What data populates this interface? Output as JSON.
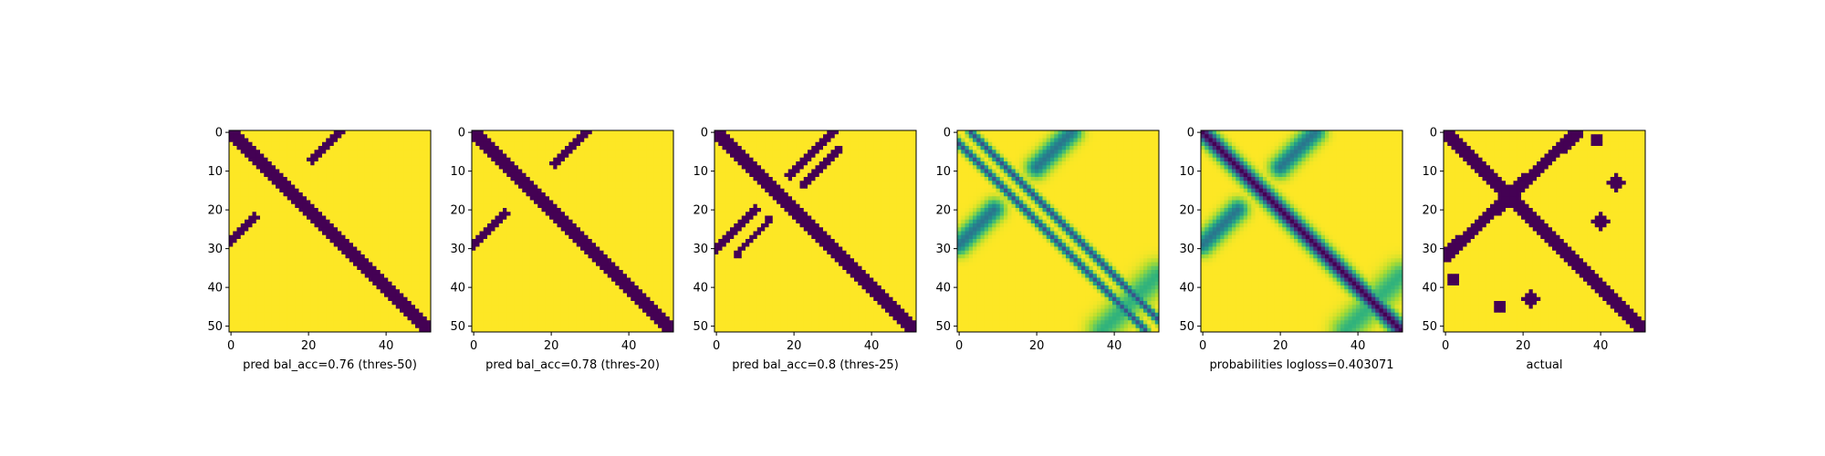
{
  "chart_data": [
    {
      "type": "heatmap",
      "id": "panel-1",
      "kind": "binary",
      "xlabel": "pred bal_acc=0.76 (thres-50)",
      "x_ticks": [
        0,
        20,
        40
      ],
      "y_ticks": [
        0,
        10,
        20,
        30,
        40,
        50
      ],
      "xlim": [
        0,
        51
      ],
      "ylim": [
        51,
        0
      ],
      "grid_size": 52,
      "colormap": "viridis",
      "bands": [
        {
          "type": "diagonal",
          "start": [
            0,
            0
          ],
          "end": [
            51,
            51
          ],
          "half_width": 1.8
        },
        {
          "type": "anti",
          "start": [
            28,
            0
          ],
          "end": [
            21,
            7
          ],
          "half_width": 1.0
        },
        {
          "type": "anti",
          "start": [
            6,
            22
          ],
          "end": [
            0,
            28
          ],
          "half_width": 1.0
        }
      ]
    },
    {
      "type": "heatmap",
      "id": "panel-2",
      "kind": "binary",
      "xlabel": "pred bal_acc=0.78 (thres-20)",
      "x_ticks": [
        0,
        20,
        40
      ],
      "y_ticks": [
        0,
        10,
        20,
        30,
        40,
        50
      ],
      "xlim": [
        0,
        51
      ],
      "ylim": [
        51,
        0
      ],
      "grid_size": 52,
      "colormap": "viridis",
      "bands": [
        {
          "type": "diagonal",
          "start": [
            0,
            0
          ],
          "end": [
            51,
            51
          ],
          "half_width": 1.9
        },
        {
          "type": "anti",
          "start": [
            29,
            0
          ],
          "end": [
            21,
            8
          ],
          "half_width": 1.1
        },
        {
          "type": "anti",
          "start": [
            8,
            21
          ],
          "end": [
            0,
            29
          ],
          "half_width": 1.1
        }
      ]
    },
    {
      "type": "heatmap",
      "id": "panel-3",
      "kind": "binary",
      "xlabel": "pred bal_acc=0.8 (thres-25)",
      "x_ticks": [
        0,
        20,
        40
      ],
      "y_ticks": [
        0,
        10,
        20,
        30,
        40,
        50
      ],
      "xlim": [
        0,
        51
      ],
      "ylim": [
        51,
        0
      ],
      "grid_size": 52,
      "colormap": "viridis",
      "bands": [
        {
          "type": "diagonal",
          "start": [
            0,
            0
          ],
          "end": [
            51,
            51
          ],
          "half_width": 2.0
        },
        {
          "type": "anti",
          "start": [
            30,
            0
          ],
          "end": [
            19,
            11
          ],
          "half_width": 1.2
        },
        {
          "type": "anti",
          "start": [
            32,
            4
          ],
          "end": [
            22,
            14
          ],
          "half_width": 0.8
        },
        {
          "type": "anti",
          "start": [
            10,
            20
          ],
          "end": [
            0,
            30
          ],
          "half_width": 1.2
        },
        {
          "type": "anti",
          "start": [
            14,
            22
          ],
          "end": [
            5,
            32
          ],
          "half_width": 0.8
        }
      ]
    },
    {
      "type": "heatmap",
      "id": "panel-4",
      "kind": "probability",
      "xlabel": "",
      "x_ticks": [
        0,
        20,
        40
      ],
      "y_ticks": [
        0,
        10,
        20,
        30,
        40,
        50
      ],
      "xlim": [
        0,
        51
      ],
      "ylim": [
        51,
        0
      ],
      "grid_size": 52,
      "colormap": "viridis",
      "bands": [
        {
          "type": "diagonal",
          "start": [
            0,
            0
          ],
          "end": [
            51,
            51
          ],
          "half_width": 0.7,
          "offset": 3,
          "level": 0.75
        },
        {
          "type": "diagonal",
          "start": [
            0,
            0
          ],
          "end": [
            51,
            51
          ],
          "half_width": 0.7,
          "offset": -3,
          "level": 0.75
        },
        {
          "type": "anti",
          "start": [
            29,
            0
          ],
          "end": [
            20,
            9
          ],
          "half_width": 1.8,
          "level": 0.6
        },
        {
          "type": "anti",
          "start": [
            9,
            20
          ],
          "end": [
            0,
            29
          ],
          "half_width": 1.8,
          "level": 0.6
        },
        {
          "type": "anti",
          "start": [
            51,
            37
          ],
          "end": [
            37,
            51
          ],
          "half_width": 2.5,
          "level": 0.35
        }
      ]
    },
    {
      "type": "heatmap",
      "id": "panel-5",
      "kind": "probability",
      "xlabel": "probabilities logloss=0.403071",
      "x_ticks": [
        0,
        20,
        40
      ],
      "y_ticks": [
        0,
        10,
        20,
        30,
        40,
        50
      ],
      "xlim": [
        0,
        51
      ],
      "ylim": [
        51,
        0
      ],
      "grid_size": 52,
      "colormap": "viridis",
      "bands": [
        {
          "type": "diagonal",
          "start": [
            0,
            0
          ],
          "end": [
            51,
            51
          ],
          "half_width": 1.4,
          "level": 1.0
        },
        {
          "type": "anti",
          "start": [
            29,
            0
          ],
          "end": [
            20,
            9
          ],
          "half_width": 1.8,
          "level": 0.6
        },
        {
          "type": "anti",
          "start": [
            9,
            20
          ],
          "end": [
            0,
            29
          ],
          "half_width": 1.8,
          "level": 0.6
        },
        {
          "type": "anti",
          "start": [
            51,
            37
          ],
          "end": [
            37,
            51
          ],
          "half_width": 2.5,
          "level": 0.35
        }
      ]
    },
    {
      "type": "heatmap",
      "id": "panel-6",
      "kind": "binary",
      "xlabel": "actual",
      "x_ticks": [
        0,
        20,
        40
      ],
      "y_ticks": [
        0,
        10,
        20,
        30,
        40,
        50
      ],
      "xlim": [
        0,
        51
      ],
      "ylim": [
        51,
        0
      ],
      "grid_size": 52,
      "colormap": "viridis",
      "bands": [
        {
          "type": "diagonal",
          "start": [
            0,
            0
          ],
          "end": [
            51,
            51
          ],
          "half_width": 1.5
        },
        {
          "type": "anti",
          "start": [
            34,
            0
          ],
          "end": [
            0,
            32
          ],
          "half_width": 1.6
        },
        {
          "type": "blob",
          "center": [
            39,
            2
          ],
          "r": 1.5
        },
        {
          "type": "blob",
          "center": [
            44,
            13
          ],
          "r": 2.0
        },
        {
          "type": "blob",
          "center": [
            40,
            23
          ],
          "r": 2.2
        },
        {
          "type": "blob",
          "center": [
            2,
            38
          ],
          "r": 1.6
        },
        {
          "type": "blob",
          "center": [
            14,
            45
          ],
          "r": 1.8
        },
        {
          "type": "blob",
          "center": [
            22,
            43
          ],
          "r": 2.2
        }
      ]
    }
  ],
  "colors": {
    "viridis_low": "#440154",
    "viridis_high": "#fde725",
    "axis": "#000000",
    "background": "#ffffff"
  }
}
